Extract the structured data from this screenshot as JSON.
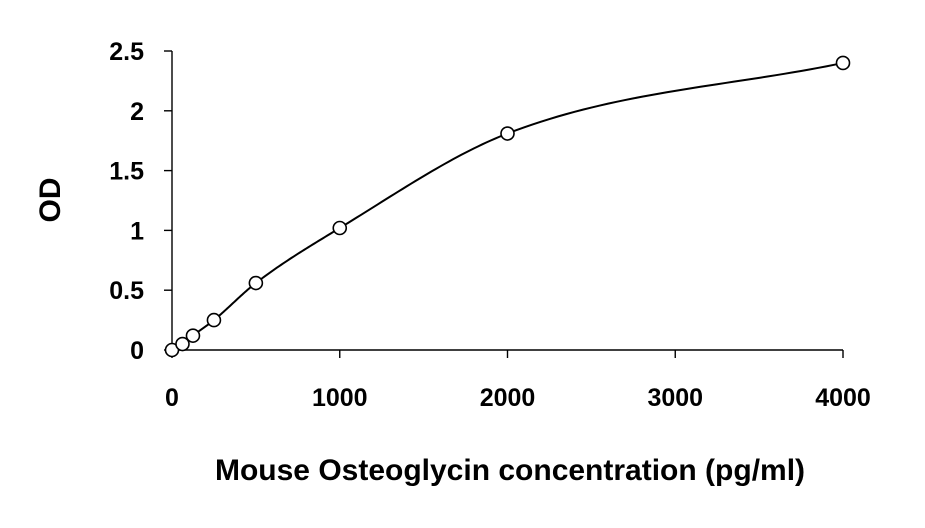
{
  "chart_data": {
    "type": "scatter",
    "title": "",
    "xlabel": "Mouse Osteoglycin concentration (pg/ml)",
    "ylabel": "OD",
    "xlim": [
      0,
      4000
    ],
    "ylim": [
      0,
      2.5
    ],
    "xticks": [
      0,
      1000,
      2000,
      3000,
      4000
    ],
    "yticks": [
      0,
      0.5,
      1,
      1.5,
      2,
      2.5
    ],
    "xtick_labels": [
      "0",
      "1000",
      "2000",
      "3000",
      "4000"
    ],
    "ytick_labels": [
      "0",
      "0.5",
      "1",
      "1.5",
      "2",
      "2.5"
    ],
    "grid": false,
    "legend": "none",
    "series": [
      {
        "x": [
          0,
          62.5,
          125,
          250,
          500,
          1000,
          2000,
          4000
        ],
        "y": [
          0.0,
          0.05,
          0.12,
          0.25,
          0.56,
          1.02,
          1.81,
          2.4
        ],
        "marker": "open-circle",
        "fit_line": "smooth-curve",
        "color": "#000000"
      }
    ]
  }
}
